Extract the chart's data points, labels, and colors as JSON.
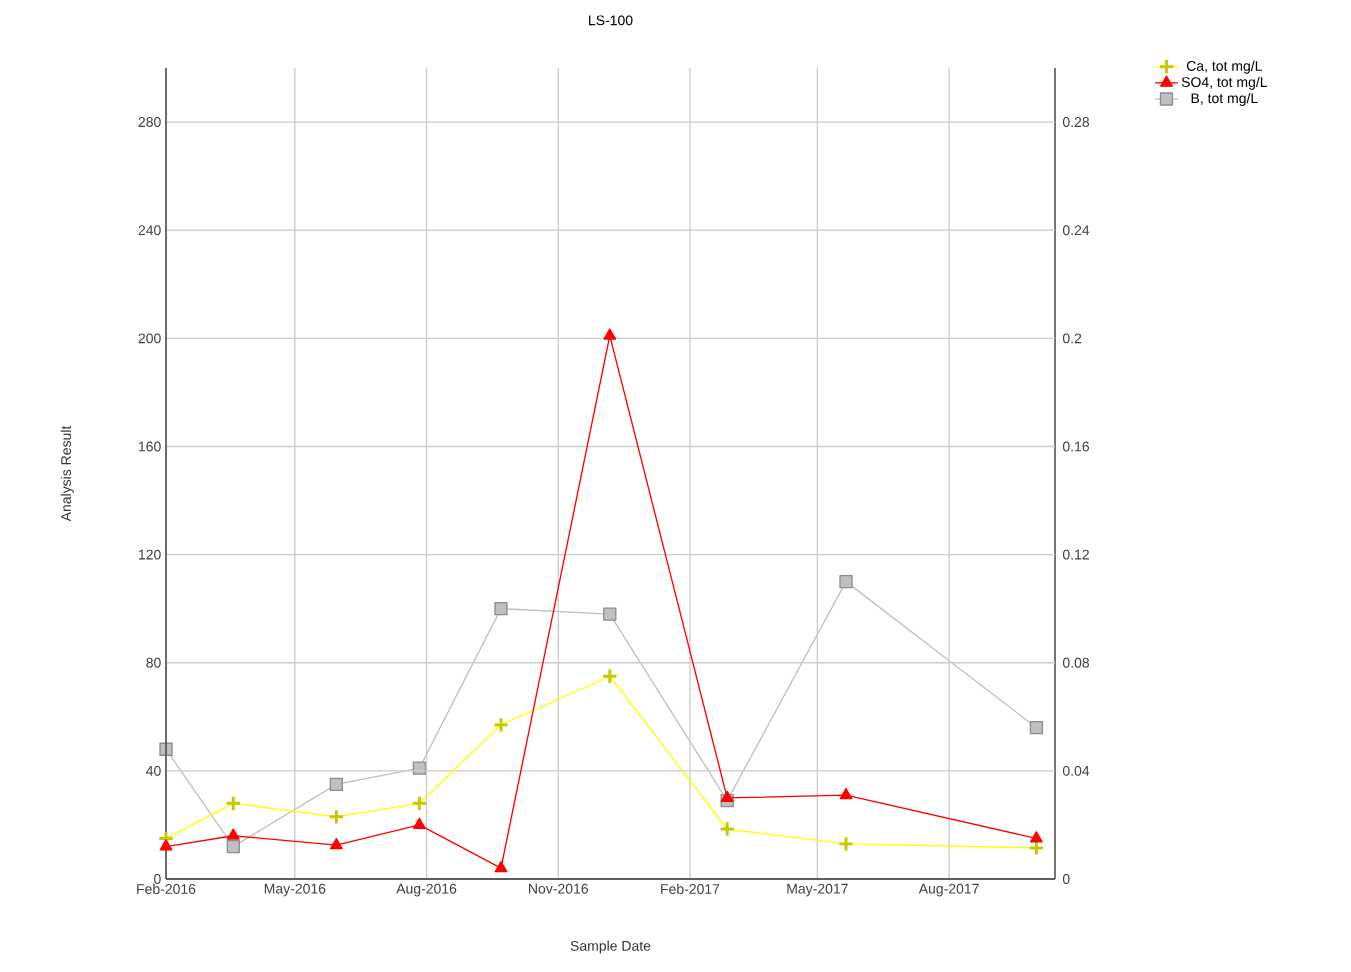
{
  "chart_data": {
    "type": "line",
    "title": "LS-100",
    "xlabel": "Sample Date",
    "ylabel": "Analysis Result",
    "x": [
      "2016-02-01",
      "2016-03-19",
      "2016-05-30",
      "2016-07-27",
      "2016-09-22",
      "2016-12-07",
      "2017-02-27",
      "2017-05-21",
      "2017-10-01"
    ],
    "series": [
      {
        "name": "Ca, tot mg/L",
        "color": "#ffff00",
        "marker": "cross",
        "values": [
          15,
          28,
          23,
          28,
          57,
          75,
          18.5,
          13,
          11.5
        ]
      },
      {
        "name": "SO4, tot mg/L",
        "color": "#ff0000",
        "marker": "triangle",
        "values": [
          12,
          16,
          12.5,
          20,
          4,
          201,
          30,
          31,
          15
        ]
      },
      {
        "name": "B, tot mg/L",
        "color": "#c0c0c0",
        "marker": "square",
        "axis": "y2",
        "values": [
          0.048,
          0.012,
          0.035,
          0.041,
          0.1,
          0.098,
          0.029,
          0.11,
          0.056
        ]
      }
    ],
    "xlim": [
      "2016-02-01",
      "2017-10-14"
    ],
    "xticks": [
      {
        "value": "2016-02-01",
        "label": "Feb-2016"
      },
      {
        "value": "2016-05-01",
        "label": "May-2016"
      },
      {
        "value": "2016-08-01",
        "label": "Aug-2016"
      },
      {
        "value": "2016-11-01",
        "label": "Nov-2016"
      },
      {
        "value": "2017-02-01",
        "label": "Feb-2017"
      },
      {
        "value": "2017-05-01",
        "label": "May-2017"
      },
      {
        "value": "2017-08-01",
        "label": "Aug-2017"
      }
    ],
    "ylim": [
      0,
      300
    ],
    "yticks": [
      0,
      40,
      80,
      120,
      160,
      200,
      240,
      280
    ],
    "y2lim": [
      0,
      0.3
    ],
    "y2ticks": [
      0,
      0.04,
      0.08,
      0.12,
      0.16,
      0.2,
      0.24,
      0.28
    ],
    "grid": true,
    "legend": "top right",
    "line_style": "solid"
  }
}
